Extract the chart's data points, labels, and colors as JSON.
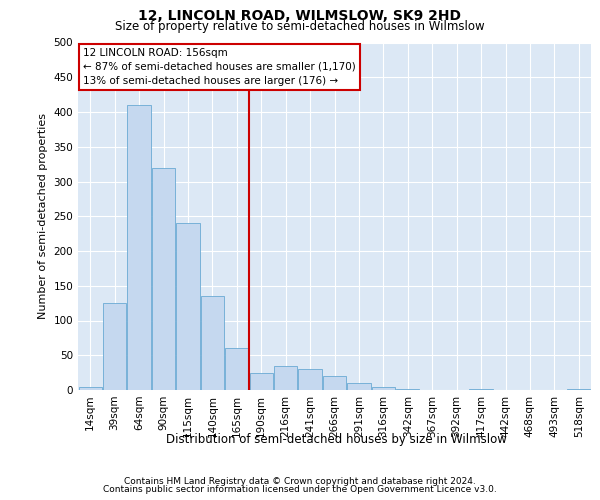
{
  "title_line1": "12, LINCOLN ROAD, WILMSLOW, SK9 2HD",
  "title_line2": "Size of property relative to semi-detached houses in Wilmslow",
  "xlabel": "Distribution of semi-detached houses by size in Wilmslow",
  "ylabel": "Number of semi-detached properties",
  "footer_line1": "Contains HM Land Registry data © Crown copyright and database right 2024.",
  "footer_line2": "Contains public sector information licensed under the Open Government Licence v3.0.",
  "annotation_line1": "12 LINCOLN ROAD: 156sqm",
  "annotation_line2": "← 87% of semi-detached houses are smaller (1,170)",
  "annotation_line3": "13% of semi-detached houses are larger (176) →",
  "bar_color": "#c5d8ef",
  "bar_edge_color": "#6aaad4",
  "highlight_line_color": "#cc0000",
  "background_color": "#dce8f5",
  "categories": [
    "14sqm",
    "39sqm",
    "64sqm",
    "90sqm",
    "115sqm",
    "140sqm",
    "165sqm",
    "190sqm",
    "216sqm",
    "241sqm",
    "266sqm",
    "291sqm",
    "316sqm",
    "342sqm",
    "367sqm",
    "392sqm",
    "417sqm",
    "442sqm",
    "468sqm",
    "493sqm",
    "518sqm"
  ],
  "values": [
    5,
    125,
    410,
    320,
    240,
    135,
    60,
    25,
    35,
    30,
    20,
    10,
    5,
    1,
    0,
    0,
    2,
    0,
    0,
    0,
    2
  ],
  "ylim": [
    0,
    500
  ],
  "yticks": [
    0,
    50,
    100,
    150,
    200,
    250,
    300,
    350,
    400,
    450,
    500
  ],
  "vline_x": 6.5,
  "title_fontsize": 10,
  "subtitle_fontsize": 8.5,
  "ylabel_fontsize": 8,
  "xlabel_fontsize": 8.5,
  "tick_fontsize": 7.5,
  "footer_fontsize": 6.5,
  "ann_fontsize": 7.5
}
